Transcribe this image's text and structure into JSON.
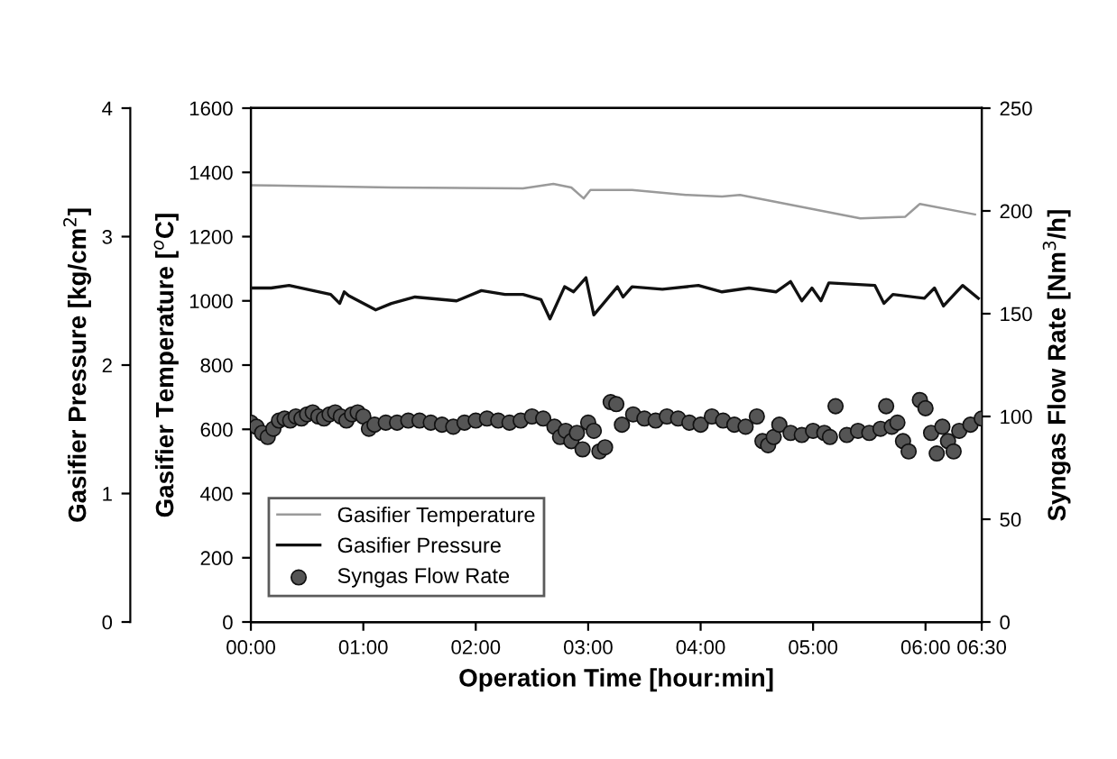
{
  "chart_data": {
    "type": "line",
    "xlabel": "Operation Time [hour:min]",
    "ylabel": "Gasifier Temperature [$^{o}$C]",
    "y2label": "Syngas Flow Rate [Nm$^{3}$/h]",
    "y3label": "Gasifier Pressure [kg/cm$^{2}$]",
    "xlim": [
      0,
      6.5
    ],
    "xticks": [
      {
        "value": 0,
        "label": "00:00"
      },
      {
        "value": 1,
        "label": "01:00"
      },
      {
        "value": 2,
        "label": "02:00"
      },
      {
        "value": 3,
        "label": "03:00"
      },
      {
        "value": 4,
        "label": "04:00"
      },
      {
        "value": 5,
        "label": "05:00"
      },
      {
        "value": 6,
        "label": "06:00"
      },
      {
        "value": 6.5,
        "label": "06:30"
      }
    ],
    "ylim": [
      0,
      1600
    ],
    "yticks": [
      0,
      200,
      400,
      600,
      800,
      1000,
      1200,
      1400,
      1600
    ],
    "y2lim": [
      0,
      250
    ],
    "y2ticks": [
      0,
      50,
      100,
      150,
      200,
      250
    ],
    "y3lim": [
      0,
      4
    ],
    "y3ticks": [
      0,
      1,
      2,
      3,
      4
    ],
    "grid": false,
    "legend": "bottom left",
    "series": [
      {
        "name": "Gasifier Temperature",
        "color": "#9a9a9a",
        "x": [
          0,
          0.18,
          1.25,
          2.42,
          2.69,
          2.85,
          2.96,
          3.02,
          3.39,
          3.87,
          4.19,
          4.35,
          4.67,
          5.42,
          5.82,
          5.95,
          6.44
        ],
        "values": [
          1360,
          1359,
          1353,
          1350,
          1364,
          1353,
          1319,
          1345,
          1345,
          1330,
          1325,
          1330,
          1308,
          1257,
          1262,
          1302,
          1269
        ]
      },
      {
        "name": "Gasifier Pressure",
        "color": "#111111",
        "axis": "y3",
        "x": [
          0,
          0.18,
          0.34,
          0.71,
          0.79,
          0.83,
          0.87,
          1.11,
          1.25,
          1.46,
          1.83,
          2.05,
          2.26,
          2.42,
          2.58,
          2.66,
          2.79,
          2.87,
          2.98,
          3.05,
          3.26,
          3.31,
          3.39,
          3.66,
          3.98,
          4.19,
          4.43,
          4.67,
          4.8,
          4.9,
          4.99,
          5.07,
          5.14,
          5.15,
          5.55,
          5.63,
          5.71,
          5.99,
          6.08,
          6.16,
          6.33,
          6.47
        ],
        "values": [
          2.6,
          2.6,
          2.62,
          2.55,
          2.48,
          2.57,
          2.54,
          2.43,
          2.48,
          2.53,
          2.5,
          2.58,
          2.55,
          2.55,
          2.51,
          2.36,
          2.61,
          2.57,
          2.68,
          2.39,
          2.61,
          2.53,
          2.61,
          2.59,
          2.62,
          2.57,
          2.6,
          2.57,
          2.65,
          2.5,
          2.6,
          2.5,
          2.64,
          2.64,
          2.62,
          2.48,
          2.55,
          2.52,
          2.6,
          2.46,
          2.62,
          2.52
        ]
      },
      {
        "name": "Syngas Flow Rate",
        "type": "scatter",
        "color": "#555555",
        "axis": "y2",
        "marker": "circle",
        "x": [
          0.0,
          0.05,
          0.1,
          0.15,
          0.2,
          0.25,
          0.3,
          0.35,
          0.4,
          0.45,
          0.5,
          0.55,
          0.6,
          0.65,
          0.7,
          0.75,
          0.8,
          0.85,
          0.9,
          0.95,
          1.0,
          1.05,
          1.1,
          1.2,
          1.3,
          1.4,
          1.5,
          1.6,
          1.7,
          1.8,
          1.9,
          2.0,
          2.1,
          2.2,
          2.3,
          2.4,
          2.5,
          2.6,
          2.7,
          2.75,
          2.8,
          2.85,
          2.9,
          2.95,
          3.0,
          3.05,
          3.1,
          3.15,
          3.2,
          3.25,
          3.3,
          3.4,
          3.5,
          3.6,
          3.7,
          3.8,
          3.9,
          4.0,
          4.1,
          4.2,
          4.3,
          4.4,
          4.5,
          4.55,
          4.6,
          4.65,
          4.7,
          4.8,
          4.9,
          5.0,
          5.1,
          5.15,
          5.2,
          5.3,
          5.4,
          5.5,
          5.6,
          5.65,
          5.7,
          5.75,
          5.8,
          5.85,
          5.95,
          6.0,
          6.05,
          6.1,
          6.15,
          6.2,
          6.25,
          6.3,
          6.4,
          6.5
        ],
        "values": [
          97,
          95,
          92,
          90,
          94,
          98,
          99,
          98,
          100,
          99,
          101,
          102,
          100,
          99,
          101,
          102,
          100,
          98,
          101,
          102,
          100,
          94,
          96,
          97,
          97,
          98,
          98,
          97,
          96,
          95,
          97,
          98,
          99,
          98,
          97,
          98,
          100,
          99,
          95,
          90,
          93,
          88,
          92,
          84,
          97,
          93,
          83,
          85,
          107,
          106,
          96,
          101,
          99,
          98,
          100,
          99,
          97,
          96,
          100,
          98,
          96,
          95,
          100,
          88,
          86,
          90,
          96,
          92,
          91,
          93,
          92,
          90,
          105,
          91,
          93,
          92,
          94,
          105,
          95,
          97,
          88,
          83,
          108,
          104,
          92,
          82,
          95,
          88,
          83,
          93,
          96,
          99
        ]
      }
    ]
  }
}
